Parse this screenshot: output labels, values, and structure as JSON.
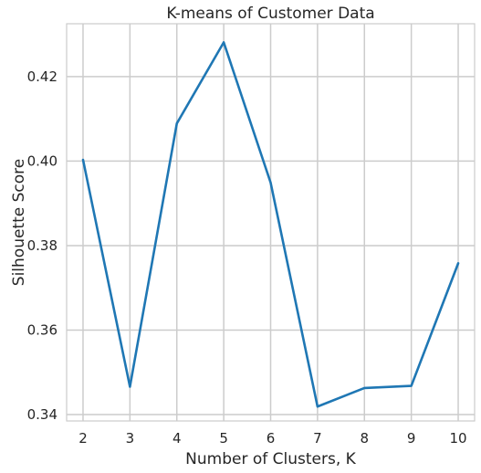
{
  "chart_data": {
    "type": "line",
    "title": "K-means of Customer Data",
    "xlabel": "Number of Clusters, K",
    "ylabel": "Silhouette Score",
    "x": [
      2,
      3,
      4,
      5,
      6,
      7,
      8,
      9,
      10
    ],
    "series": [
      {
        "values": [
          0.4003,
          0.3466,
          0.4089,
          0.4281,
          0.3949,
          0.3419,
          0.3463,
          0.3468,
          0.3758
        ]
      }
    ],
    "xlim": [
      1.65,
      10.35
    ],
    "ylim": [
      0.3385,
      0.4325
    ],
    "x_ticks": [
      2,
      3,
      4,
      5,
      6,
      7,
      8,
      9,
      10
    ],
    "y_ticks": [
      0.34,
      0.36,
      0.38,
      0.4,
      0.42
    ],
    "y_tick_labels": [
      "0.34",
      "0.36",
      "0.38",
      "0.40",
      "0.42"
    ],
    "grid": true,
    "colors": {
      "line": "#1f77b4",
      "grid": "#cccccc",
      "spine": "#cccccc",
      "text": "#262626"
    }
  }
}
